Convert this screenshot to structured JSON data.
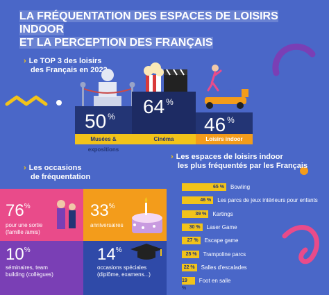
{
  "title": {
    "line1": "LA FRÉQUENTATION DES ESPACES DE LOISIRS INDOOR",
    "line2": "ET LA PERCEPTION DES FRANÇAIS"
  },
  "top3": {
    "heading1": "Le TOP 3 des loisirs",
    "heading2": "des Français en 2022",
    "items": [
      {
        "value": "50",
        "unit": "%",
        "label": "Musées & expositions"
      },
      {
        "value": "64",
        "unit": "%",
        "label": "Cinéma"
      },
      {
        "value": "46",
        "unit": "%",
        "label": "Loisirs indoor"
      }
    ]
  },
  "occasions": {
    "heading1": "Les occasions",
    "heading2": "de fréquentation",
    "items": [
      {
        "value": "76",
        "unit": "%",
        "text1": "pour une sortie",
        "text2": "(famille /amis)"
      },
      {
        "value": "33",
        "unit": "%",
        "text1": "anniversaires",
        "text2": ""
      },
      {
        "value": "10",
        "unit": "%",
        "text1": "séminaires, team",
        "text2": "building (collègues)"
      },
      {
        "value": "14",
        "unit": "%",
        "text1": "occasions spéciales",
        "text2": "(diplôme, examens...)"
      }
    ]
  },
  "chart_data": {
    "type": "bar",
    "title": "Les espaces de loisirs indoor les plus fréquentés par les Français",
    "title_line1": "Les espaces de loisirs indoor",
    "title_line2": "les plus fréquentés par les Français",
    "categories": [
      "Bowling",
      "Les parcs de jeux intérieurs pour enfants",
      "Kartings",
      "Laser Game",
      "Escape game",
      "Trampoline parcs",
      "Salles d'escalades",
      "Foot en salle"
    ],
    "values": [
      65,
      46,
      39,
      30,
      27,
      25,
      22,
      19
    ],
    "value_labels": [
      "65 %",
      "46 %",
      "39 %",
      "30 %",
      "27 %",
      "25 %",
      "22 %",
      "19 %"
    ],
    "unit": "%",
    "orientation": "horizontal",
    "xlim": [
      0,
      65
    ],
    "bar_color": "#f2c31a"
  },
  "colors": {
    "background": "#4a67c8",
    "navy": "#233575",
    "yellow": "#f2c31a",
    "orange": "#f39c1b",
    "pink": "#e94b8a",
    "purple": "#7a3fb5"
  }
}
